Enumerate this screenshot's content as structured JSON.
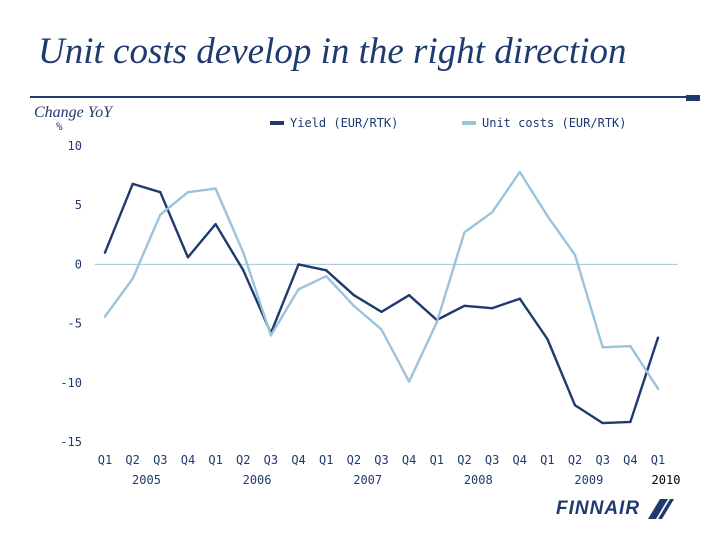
{
  "slide": {
    "title": "Unit costs develop in the right direction",
    "brand": "FINNAIR"
  },
  "chart_data": {
    "type": "line",
    "title": "Change YoY",
    "ylabel": "%",
    "xlabel": "",
    "ylim": [
      -15,
      10
    ],
    "yticks": [
      10,
      5,
      0,
      -5,
      -10,
      -15
    ],
    "categories": [
      "Q1",
      "Q2",
      "Q3",
      "Q4",
      "Q1",
      "Q2",
      "Q3",
      "Q4",
      "Q1",
      "Q2",
      "Q3",
      "Q4",
      "Q1",
      "Q2",
      "Q3",
      "Q4",
      "Q1",
      "Q2",
      "Q3",
      "Q4",
      "Q1"
    ],
    "year_labels": [
      "2005",
      "2006",
      "2007",
      "2008",
      "2009",
      "2010"
    ],
    "colors": {
      "zero_line": "#a6c8d2"
    },
    "series": [
      {
        "name": "Yield (EUR/RTK)",
        "color": "#1f3a6e",
        "values": [
          1.0,
          6.8,
          6.1,
          0.6,
          3.4,
          -0.5,
          -5.8,
          0.0,
          -0.5,
          -2.6,
          -4.0,
          -2.6,
          -4.7,
          -3.5,
          -3.7,
          -2.9,
          -6.3,
          -11.9,
          -13.4,
          -13.3,
          -6.2
        ]
      },
      {
        "name": "Unit costs (EUR/RTK)",
        "color": "#9cc3dc",
        "values": [
          -4.4,
          -1.2,
          4.2,
          6.1,
          6.4,
          1.0,
          -6.0,
          -2.1,
          -1.0,
          -3.5,
          -5.5,
          -9.9,
          -4.9,
          2.7,
          4.4,
          7.8,
          4.1,
          0.8,
          -7.0,
          -6.9,
          -10.5
        ]
      }
    ]
  }
}
